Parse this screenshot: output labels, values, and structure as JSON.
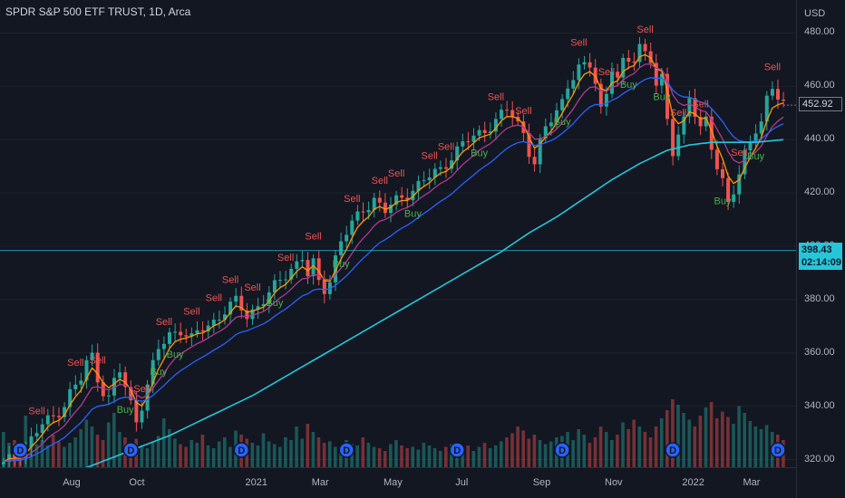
{
  "chart_data": {
    "type": "candlestick",
    "title": "SPDR S&P 500 ETF TRUST, 1D, Arca",
    "currency": "USD",
    "ylim": [
      310,
      490
    ],
    "yticks": [
      320,
      340,
      360,
      380,
      400,
      420,
      440,
      460,
      480
    ],
    "xticks": [
      "Aug",
      "Oct",
      "2021",
      "Mar",
      "May",
      "Jul",
      "Sep",
      "Nov",
      "2022",
      "Mar"
    ],
    "last_price": {
      "value": "452.92",
      "color": "#ffffff"
    },
    "crosshair": {
      "value": "398.43",
      "time": "02:14:09",
      "color": "#26c6da"
    },
    "price_path": [
      [
        0,
        318
      ],
      [
        4,
        325
      ],
      [
        7,
        333
      ],
      [
        9,
        336
      ],
      [
        11,
        341
      ],
      [
        12,
        345
      ],
      [
        14,
        350
      ],
      [
        15,
        356
      ],
      [
        16,
        359
      ],
      [
        17,
        351
      ],
      [
        18,
        346
      ],
      [
        19,
        343
      ],
      [
        20,
        349
      ],
      [
        21,
        353
      ],
      [
        22,
        347
      ],
      [
        23,
        341
      ],
      [
        24,
        335
      ],
      [
        25,
        341
      ],
      [
        26,
        348
      ],
      [
        27,
        355
      ],
      [
        28,
        361
      ],
      [
        30,
        367
      ],
      [
        32,
        369
      ],
      [
        34,
        365
      ],
      [
        36,
        369
      ],
      [
        38,
        372
      ],
      [
        40,
        376
      ],
      [
        42,
        379
      ],
      [
        44,
        374
      ],
      [
        46,
        378
      ],
      [
        48,
        382
      ],
      [
        50,
        387
      ],
      [
        52,
        392
      ],
      [
        54,
        396
      ],
      [
        55,
        389
      ],
      [
        56,
        393
      ],
      [
        57,
        386
      ],
      [
        58,
        384
      ],
      [
        59,
        388
      ],
      [
        60,
        396
      ],
      [
        61,
        402
      ],
      [
        63,
        408
      ],
      [
        65,
        414
      ],
      [
        67,
        418
      ],
      [
        69,
        413
      ],
      [
        71,
        417
      ],
      [
        73,
        420
      ],
      [
        75,
        423
      ],
      [
        77,
        426
      ],
      [
        79,
        429
      ],
      [
        81,
        434
      ],
      [
        83,
        438
      ],
      [
        85,
        441
      ],
      [
        87,
        444
      ],
      [
        89,
        447
      ],
      [
        91,
        451
      ],
      [
        92,
        449
      ],
      [
        93,
        446
      ],
      [
        94,
        443
      ],
      [
        95,
        436
      ],
      [
        96,
        431
      ],
      [
        97,
        438
      ],
      [
        98,
        444
      ],
      [
        100,
        451
      ],
      [
        101,
        455
      ],
      [
        102,
        461
      ],
      [
        104,
        466
      ],
      [
        106,
        468
      ],
      [
        107,
        462
      ],
      [
        108,
        452
      ],
      [
        109,
        458
      ],
      [
        110,
        467
      ],
      [
        111,
        462
      ],
      [
        112,
        468
      ],
      [
        114,
        471
      ],
      [
        115,
        476
      ],
      [
        116,
        473
      ],
      [
        117,
        470
      ],
      [
        118,
        460
      ],
      [
        119,
        462
      ],
      [
        120,
        447
      ],
      [
        121,
        436
      ],
      [
        122,
        443
      ],
      [
        123,
        448
      ],
      [
        124,
        456
      ],
      [
        125,
        449
      ],
      [
        126,
        443
      ],
      [
        127,
        447
      ],
      [
        128,
        438
      ],
      [
        129,
        431
      ],
      [
        130,
        425
      ],
      [
        131,
        416
      ],
      [
        132,
        420
      ],
      [
        133,
        426
      ],
      [
        134,
        434
      ],
      [
        135,
        440
      ],
      [
        136,
        445
      ],
      [
        137,
        447
      ],
      [
        138,
        455
      ],
      [
        139,
        459
      ],
      [
        140,
        455
      ],
      [
        141,
        452.9
      ]
    ],
    "series": [
      {
        "name": "",
        "color": "#ff9800"
      },
      {
        "name": "",
        "color": "#b03a8e"
      },
      {
        "name": "",
        "color": "#2962ff"
      },
      {
        "name": "",
        "color": "#26c6da"
      }
    ],
    "sma200_path": [
      [
        0,
        304
      ],
      [
        6,
        310
      ],
      [
        10,
        313
      ],
      [
        15,
        317
      ],
      [
        20,
        321
      ],
      [
        25,
        325
      ],
      [
        30,
        329
      ],
      [
        35,
        334
      ],
      [
        40,
        339
      ],
      [
        45,
        344
      ],
      [
        50,
        350
      ],
      [
        55,
        356
      ],
      [
        60,
        362
      ],
      [
        65,
        368
      ],
      [
        70,
        374
      ],
      [
        75,
        380
      ],
      [
        80,
        386
      ],
      [
        85,
        392
      ],
      [
        90,
        398
      ],
      [
        95,
        405
      ],
      [
        100,
        411
      ],
      [
        105,
        418
      ],
      [
        110,
        425
      ],
      [
        115,
        431
      ],
      [
        120,
        436
      ],
      [
        124,
        438
      ],
      [
        128,
        439
      ],
      [
        132,
        439
      ],
      [
        136,
        439
      ],
      [
        141,
        440
      ]
    ],
    "volumes": [
      0.26,
      0.18,
      0.2,
      0.14,
      0.38,
      0.22,
      0.17,
      0.2,
      0.16,
      0.24,
      0.19,
      0.15,
      0.18,
      0.22,
      0.28,
      0.35,
      0.3,
      0.24,
      0.2,
      0.33,
      0.4,
      0.26,
      0.22,
      0.18,
      0.21,
      0.16,
      0.14,
      0.19,
      0.23,
      0.36,
      0.28,
      0.21,
      0.17,
      0.15,
      0.2,
      0.18,
      0.24,
      0.16,
      0.14,
      0.19,
      0.22,
      0.15,
      0.27,
      0.24,
      0.21,
      0.18,
      0.16,
      0.25,
      0.19,
      0.17,
      0.15,
      0.22,
      0.2,
      0.3,
      0.21,
      0.32,
      0.26,
      0.22,
      0.18,
      0.19,
      0.15,
      0.14,
      0.2,
      0.17,
      0.16,
      0.22,
      0.18,
      0.15,
      0.14,
      0.12,
      0.17,
      0.2,
      0.16,
      0.14,
      0.15,
      0.13,
      0.18,
      0.16,
      0.14,
      0.12,
      0.15,
      0.17,
      0.13,
      0.14,
      0.16,
      0.12,
      0.15,
      0.18,
      0.14,
      0.16,
      0.19,
      0.22,
      0.25,
      0.3,
      0.27,
      0.21,
      0.24,
      0.2,
      0.17,
      0.19,
      0.22,
      0.23,
      0.26,
      0.2,
      0.28,
      0.24,
      0.18,
      0.22,
      0.3,
      0.26,
      0.2,
      0.24,
      0.33,
      0.28,
      0.35,
      0.3,
      0.26,
      0.22,
      0.3,
      0.36,
      0.42,
      0.5,
      0.46,
      0.4,
      0.35,
      0.3,
      0.38,
      0.44,
      0.48,
      0.36,
      0.41,
      0.37,
      0.32,
      0.45,
      0.4,
      0.34,
      0.3,
      0.28,
      0.31,
      0.26,
      0.24,
      0.2
    ],
    "signals": [
      {
        "type": "Sell",
        "i": 6
      },
      {
        "type": "Sell",
        "i": 13
      },
      {
        "type": "Sell",
        "i": 17
      },
      {
        "type": "Buy",
        "i": 22
      },
      {
        "type": "Sell",
        "i": 25
      },
      {
        "type": "Buy",
        "i": 28
      },
      {
        "type": "Sell",
        "i": 29
      },
      {
        "type": "Buy",
        "i": 31
      },
      {
        "type": "Sell",
        "i": 34
      },
      {
        "type": "Sell",
        "i": 38
      },
      {
        "type": "Sell",
        "i": 41
      },
      {
        "type": "Sell",
        "i": 45
      },
      {
        "type": "Buy",
        "i": 49
      },
      {
        "type": "Sell",
        "i": 51
      },
      {
        "type": "Sell",
        "i": 56
      },
      {
        "type": "Buy",
        "i": 61
      },
      {
        "type": "Sell",
        "i": 63
      },
      {
        "type": "Sell",
        "i": 68
      },
      {
        "type": "Sell",
        "i": 71
      },
      {
        "type": "Buy",
        "i": 74
      },
      {
        "type": "Sell",
        "i": 77
      },
      {
        "type": "Sell",
        "i": 80
      },
      {
        "type": "Buy",
        "i": 86
      },
      {
        "type": "Sell",
        "i": 89
      },
      {
        "type": "Sell",
        "i": 94
      },
      {
        "type": "Buy",
        "i": 101
      },
      {
        "type": "Sell",
        "i": 104
      },
      {
        "type": "Sell",
        "i": 109
      },
      {
        "type": "Buy",
        "i": 113
      },
      {
        "type": "Sell",
        "i": 116
      },
      {
        "type": "Buy",
        "i": 119
      },
      {
        "type": "Sell",
        "i": 122
      },
      {
        "type": "Sell",
        "i": 126
      },
      {
        "type": "Buy",
        "i": 130
      },
      {
        "type": "Sell",
        "i": 133
      },
      {
        "type": "Buy",
        "i": 136
      },
      {
        "type": "Sell",
        "i": 139
      }
    ],
    "dividends": [
      "D",
      "D",
      "D",
      "D",
      "D",
      "D",
      "D",
      "D"
    ],
    "colors": {
      "up": "#26a69a",
      "down": "#ef5350",
      "sell": "#ef5350",
      "buy": "#4caf50",
      "grid": "#1e222d"
    }
  }
}
